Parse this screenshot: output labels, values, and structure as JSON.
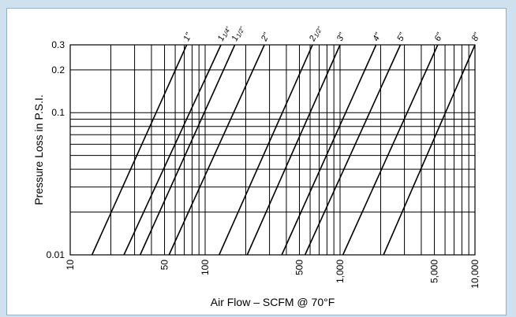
{
  "chart_data": {
    "type": "line",
    "title": "",
    "xlabel": "Air Flow – SCFM @ 70°F",
    "ylabel": "Pressure Loss in P.S.I.",
    "xscale": "log",
    "yscale": "log",
    "xlim": [
      10,
      10000
    ],
    "ylim": [
      0.01,
      0.3
    ],
    "x_tick_labels": [
      {
        "v": 10,
        "label": "10"
      },
      {
        "v": 50,
        "label": "50"
      },
      {
        "v": 100,
        "label": "100"
      },
      {
        "v": 500,
        "label": "500"
      },
      {
        "v": 1000,
        "label": "1,000"
      },
      {
        "v": 5000,
        "label": "5,000"
      },
      {
        "v": 10000,
        "label": "10,000"
      }
    ],
    "y_tick_labels": [
      {
        "v": 0.01,
        "label": "0.01"
      },
      {
        "v": 0.1,
        "label": "0.1"
      },
      {
        "v": 0.2,
        "label": "0.2"
      },
      {
        "v": 0.3,
        "label": "0.3"
      }
    ],
    "grid": true,
    "series": [
      {
        "name": "1\"",
        "label_main": "1\"",
        "label_frac": "",
        "points": [
          [
            14.5,
            0.01
          ],
          [
            73,
            0.3
          ]
        ]
      },
      {
        "name": "1 1/4\"",
        "label_main": "1",
        "label_frac": "1/4\"",
        "points": [
          [
            25,
            0.01
          ],
          [
            131,
            0.3
          ]
        ]
      },
      {
        "name": "1 1/2\"",
        "label_main": "1",
        "label_frac": "1/2\"",
        "points": [
          [
            33,
            0.01
          ],
          [
            166,
            0.3
          ]
        ]
      },
      {
        "name": "2\"",
        "label_main": "2\"",
        "label_frac": "",
        "points": [
          [
            54,
            0.01
          ],
          [
            275,
            0.3
          ]
        ]
      },
      {
        "name": "2 1/2\"",
        "label_main": "2",
        "label_frac": "1/2\"",
        "points": [
          [
            127,
            0.01
          ],
          [
            625,
            0.3
          ]
        ]
      },
      {
        "name": "3\"",
        "label_main": "3\"",
        "label_frac": "",
        "points": [
          [
            205,
            0.01
          ],
          [
            1000,
            0.3
          ]
        ]
      },
      {
        "name": "4\"",
        "label_main": "4\"",
        "label_frac": "",
        "points": [
          [
            370,
            0.01
          ],
          [
            1850,
            0.3
          ]
        ]
      },
      {
        "name": "5\"",
        "label_main": "5\"",
        "label_frac": "",
        "points": [
          [
            550,
            0.01
          ],
          [
            2800,
            0.3
          ]
        ]
      },
      {
        "name": "6\"",
        "label_main": "6\"",
        "label_frac": "",
        "points": [
          [
            1050,
            0.01
          ],
          [
            5300,
            0.3
          ]
        ]
      },
      {
        "name": "8\"",
        "label_main": "8\"",
        "label_frac": "",
        "points": [
          [
            2100,
            0.01
          ],
          [
            10000,
            0.3
          ]
        ]
      }
    ],
    "colors": {
      "line": "#000000",
      "grid": "#000000",
      "background": "#cfe0ef",
      "panel": "#ffffff",
      "border": "#8fb2cf"
    }
  }
}
